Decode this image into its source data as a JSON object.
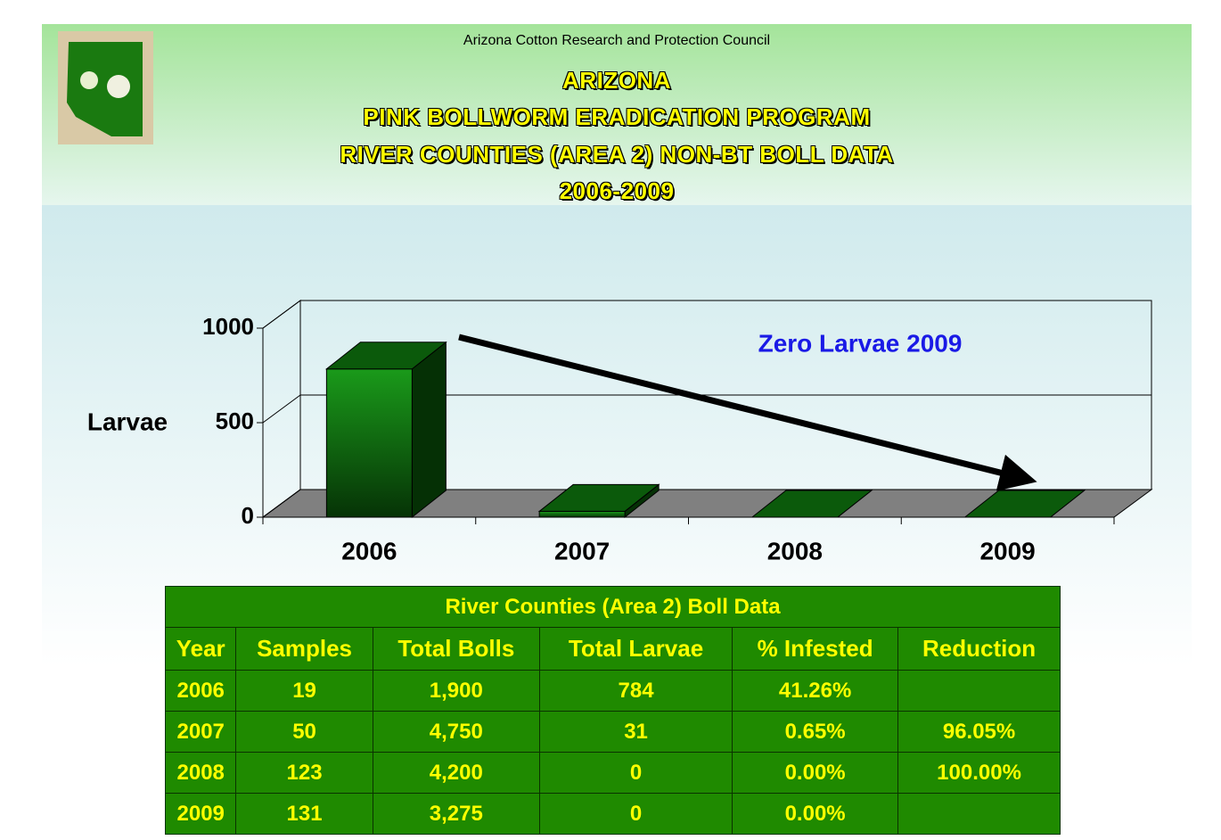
{
  "header": {
    "org": "Arizona Cotton Research and Protection Council",
    "title_lines": [
      "ARIZONA",
      "PINK BOLLWORM ERADICATION PROGRAM",
      "RIVER COUNTIES (AREA 2) NON-BT BOLL DATA",
      "2006-2009"
    ]
  },
  "chart_data": {
    "type": "bar3d",
    "ylabel": "Larvae",
    "categories": [
      "2006",
      "2007",
      "2008",
      "2009"
    ],
    "values": [
      784,
      31,
      0,
      0
    ],
    "color": "#138a13",
    "ylim": [
      0,
      1000
    ],
    "yticks": [
      0,
      500,
      1000
    ],
    "grid": true,
    "annotation": "Zero Larvae 2009"
  },
  "table": {
    "title": "River Counties (Area 2) Boll Data",
    "columns": [
      "Year",
      "Samples",
      "Total Bolls",
      "Total Larvae",
      "% Infested",
      "Reduction"
    ],
    "rows": [
      [
        "2006",
        "19",
        "1,900",
        "784",
        "41.26%",
        null
      ],
      [
        "2007",
        "50",
        "4,750",
        "31",
        "0.65%",
        "96.05%"
      ],
      [
        "2008",
        "123",
        "4,200",
        "0",
        "0.00%",
        "100.00%"
      ],
      [
        "2009",
        "131",
        "3,275",
        "0",
        "0.00%",
        null
      ]
    ]
  }
}
